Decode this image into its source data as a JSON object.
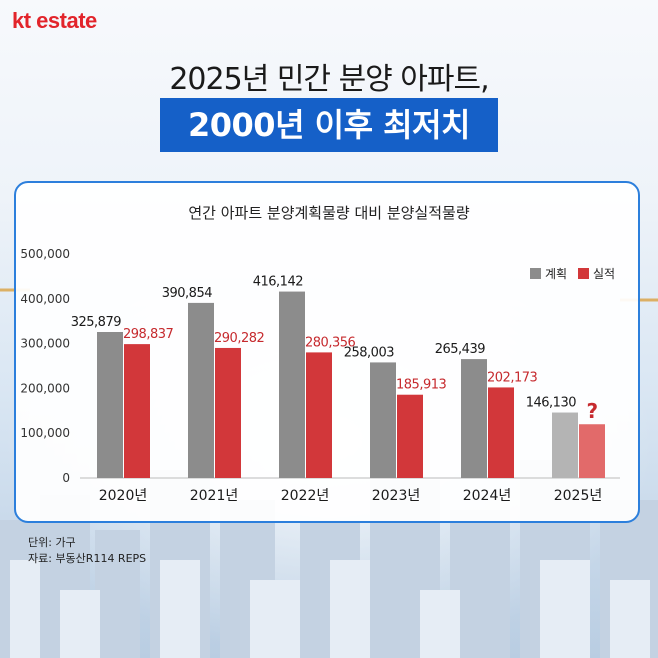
{
  "brand": {
    "logo_text": "kt estate",
    "accent": "#e2242b"
  },
  "headline": {
    "line1": "2025년 민간 분양 아파트,",
    "line2": "2000년 이후 최저치",
    "highlight_color": "#1560c8"
  },
  "chart_data": {
    "type": "bar",
    "title": "연간 아파트 분양계획물량 대비 분양실적물량",
    "categories": [
      "2020년",
      "2021년",
      "2022년",
      "2023년",
      "2024년",
      "2025년"
    ],
    "series": [
      {
        "name": "계획",
        "color": "#8c8c8c",
        "values": [
          325879,
          390854,
          416142,
          258003,
          265439,
          146130
        ],
        "labels": [
          "325,879",
          "390,854",
          "416,142",
          "258,003",
          "265,439",
          "146,130"
        ]
      },
      {
        "name": "실적",
        "color": "#d2373a",
        "values": [
          298837,
          290282,
          280356,
          185913,
          202173,
          120000
        ],
        "labels": [
          "298,837",
          "290,282",
          "280,356",
          "185,913",
          "202,173",
          "?"
        ]
      }
    ],
    "ylim": [
      0,
      500000
    ],
    "yticks": [
      0,
      100000,
      200000,
      300000,
      400000,
      500000
    ],
    "ytick_labels": [
      "0",
      "100,000",
      "200,000",
      "300,000",
      "400,000",
      "500,000"
    ],
    "grid": false,
    "legend_position": "top-right"
  },
  "footer": {
    "unit": "단위: 가구",
    "source": "자료: 부동산R114 REPS"
  }
}
